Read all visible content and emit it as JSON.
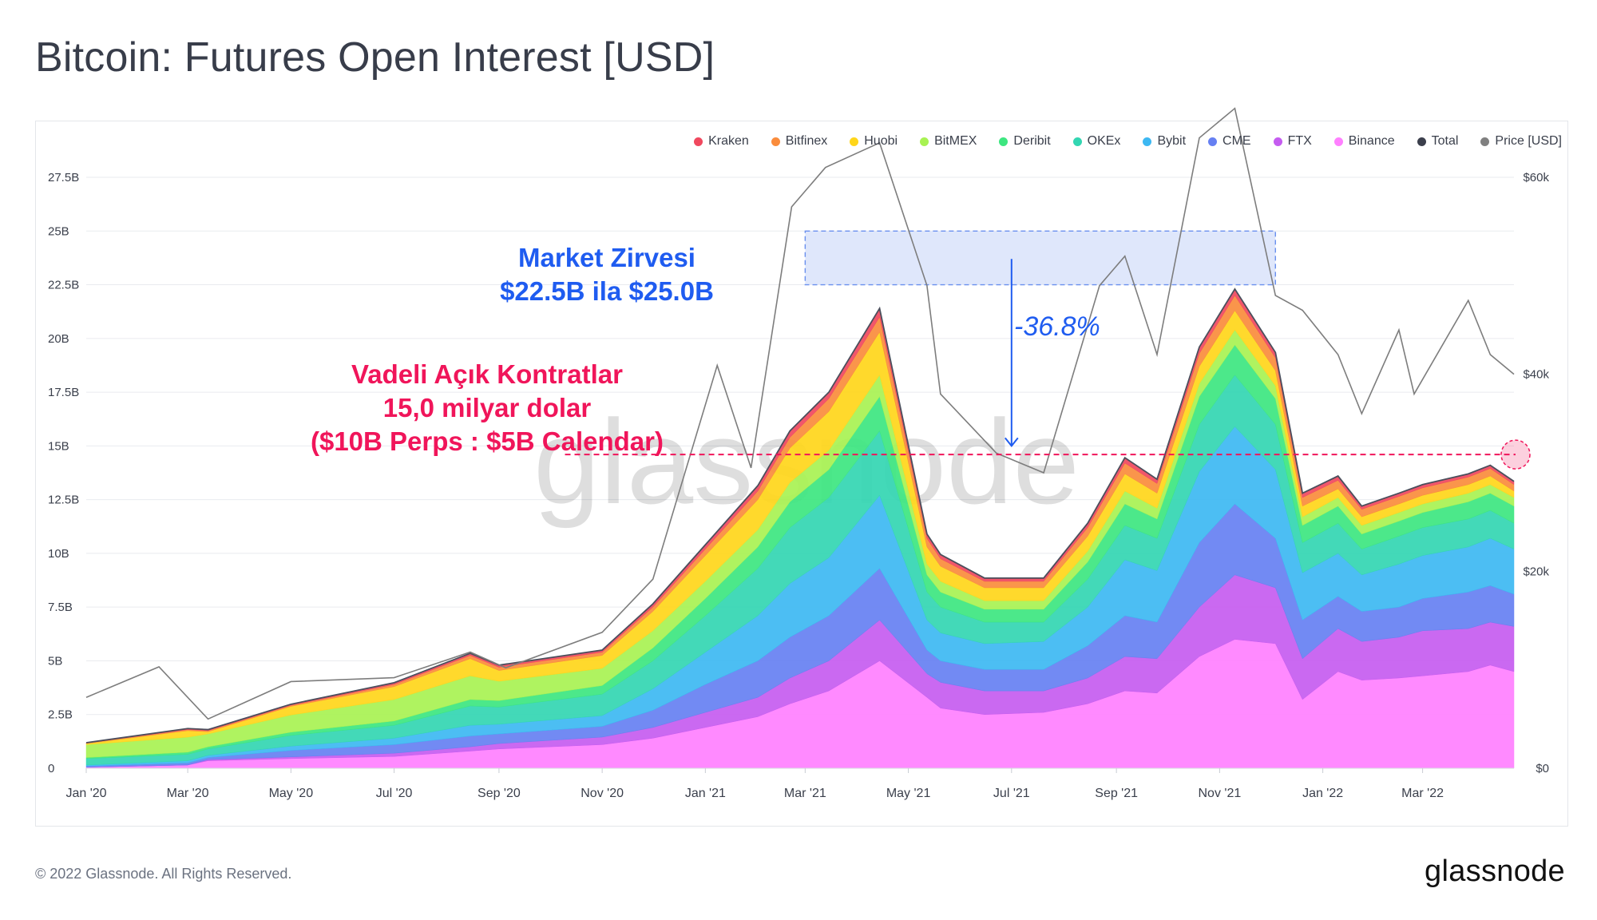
{
  "title": "Bitcoin: Futures Open Interest [USD]",
  "footer": {
    "copyright": "© 2022 Glassnode. All Rights Reserved.",
    "logo": "glassnode"
  },
  "watermark": "glassnode",
  "annotations": {
    "peak_line1": "Market Zirvesi",
    "peak_line2": "$22.5B ila $25.0B",
    "oi_line1": "Vadeli Açık Kontratlar",
    "oi_line2": "15,0 milyar dolar",
    "oi_line3": "($10B Perps : $5B Calendar)",
    "drawdown": "-36.8%"
  },
  "chart_data": {
    "type": "area",
    "stacked": true,
    "legend_position": "top-right",
    "grid": true,
    "y_left": {
      "ticks": [
        "0",
        "2.5B",
        "5B",
        "7.5B",
        "10B",
        "12.5B",
        "15B",
        "17.5B",
        "20B",
        "22.5B",
        "25B",
        "27.5B"
      ],
      "range": [
        0,
        27.5
      ]
    },
    "y_right": {
      "label": "Price [USD]",
      "ticks": [
        "$0",
        "$20k",
        "$40k",
        "$60k"
      ],
      "range": [
        0,
        60000
      ]
    },
    "x_ticks": [
      "Jan '20",
      "Mar '20",
      "May '20",
      "Jul '20",
      "Sep '20",
      "Nov '20",
      "Jan '21",
      "Mar '21",
      "May '21",
      "Jul '21",
      "Sep '21",
      "Nov '21",
      "Jan '22",
      "Mar '22"
    ],
    "x_range": [
      "2020-01-01",
      "2022-04-24"
    ],
    "x": [
      "2020-01-01",
      "2020-03-01",
      "2020-03-13",
      "2020-05-01",
      "2020-07-01",
      "2020-08-15",
      "2020-09-01",
      "2020-11-01",
      "2020-12-01",
      "2021-01-01",
      "2021-02-01",
      "2021-02-20",
      "2021-03-15",
      "2021-04-14",
      "2021-05-12",
      "2021-05-20",
      "2021-06-15",
      "2021-07-20",
      "2021-08-15",
      "2021-09-06",
      "2021-09-25",
      "2021-10-20",
      "2021-11-10",
      "2021-12-04",
      "2021-12-20",
      "2022-01-10",
      "2022-01-24",
      "2022-02-15",
      "2022-03-01",
      "2022-03-28",
      "2022-04-10",
      "2022-04-24"
    ],
    "series": [
      {
        "name": "Binance",
        "color": "#ff80ff",
        "values": [
          0.05,
          0.15,
          0.35,
          0.45,
          0.55,
          0.8,
          0.9,
          1.1,
          1.4,
          1.9,
          2.4,
          3.0,
          3.6,
          5.0,
          3.3,
          2.8,
          2.5,
          2.6,
          3.0,
          3.6,
          3.5,
          5.2,
          6.0,
          5.8,
          3.2,
          4.5,
          4.1,
          4.2,
          4.3,
          4.5,
          4.8,
          4.5
        ]
      },
      {
        "name": "FTX",
        "color": "#c55cf0",
        "values": [
          0.0,
          0.0,
          0.05,
          0.08,
          0.15,
          0.2,
          0.25,
          0.35,
          0.5,
          0.7,
          0.9,
          1.2,
          1.4,
          1.9,
          1.1,
          1.2,
          1.1,
          1.0,
          1.2,
          1.6,
          1.6,
          2.3,
          3.0,
          2.6,
          1.9,
          2.0,
          1.8,
          1.9,
          2.1,
          2.0,
          2.0,
          2.1
        ]
      },
      {
        "name": "CME",
        "color": "#6680f2",
        "values": [
          0.05,
          0.1,
          0.1,
          0.3,
          0.4,
          0.5,
          0.45,
          0.5,
          0.8,
          1.3,
          1.7,
          1.9,
          2.1,
          2.4,
          1.1,
          1.0,
          1.0,
          1.0,
          1.5,
          1.9,
          1.7,
          3.0,
          3.3,
          2.3,
          1.8,
          1.5,
          1.4,
          1.4,
          1.5,
          1.7,
          1.7,
          1.5
        ]
      },
      {
        "name": "Bybit",
        "color": "#3db8f2",
        "values": [
          0.05,
          0.1,
          0.1,
          0.2,
          0.3,
          0.5,
          0.45,
          0.5,
          1.0,
          1.5,
          2.1,
          2.5,
          2.7,
          3.4,
          1.4,
          1.3,
          1.2,
          1.3,
          1.8,
          2.6,
          2.4,
          3.3,
          3.6,
          3.2,
          2.2,
          2.0,
          1.7,
          2.0,
          2.0,
          2.1,
          2.2,
          2.1
        ]
      },
      {
        "name": "OKEx",
        "color": "#33d6b2",
        "values": [
          0.3,
          0.3,
          0.3,
          0.5,
          0.6,
          0.9,
          0.8,
          1.0,
          1.3,
          1.7,
          2.2,
          2.6,
          2.8,
          3.0,
          1.3,
          1.2,
          1.0,
          0.9,
          1.3,
          1.6,
          1.5,
          2.2,
          2.4,
          2.1,
          1.4,
          1.4,
          1.2,
          1.3,
          1.3,
          1.3,
          1.3,
          1.2
        ]
      },
      {
        "name": "Deribit",
        "color": "#3de680",
        "values": [
          0.05,
          0.1,
          0.1,
          0.15,
          0.2,
          0.3,
          0.3,
          0.4,
          0.6,
          0.8,
          1.0,
          1.2,
          1.3,
          1.6,
          0.8,
          0.7,
          0.6,
          0.6,
          0.8,
          1.0,
          0.9,
          1.3,
          1.4,
          1.2,
          0.8,
          0.8,
          0.7,
          0.7,
          0.7,
          0.8,
          0.8,
          0.8
        ]
      },
      {
        "name": "BitMEX",
        "color": "#a8f252",
        "values": [
          0.6,
          0.7,
          0.6,
          0.8,
          1.0,
          1.1,
          0.9,
          0.8,
          0.8,
          0.8,
          0.8,
          0.9,
          0.9,
          1.0,
          0.5,
          0.5,
          0.4,
          0.4,
          0.5,
          0.6,
          0.5,
          0.6,
          0.7,
          0.6,
          0.4,
          0.4,
          0.4,
          0.4,
          0.4,
          0.4,
          0.4,
          0.4
        ]
      },
      {
        "name": "Huobi",
        "color": "#ffd61a",
        "values": [
          0.05,
          0.3,
          0.1,
          0.4,
          0.6,
          0.8,
          0.5,
          0.6,
          0.9,
          1.2,
          1.4,
          1.6,
          1.8,
          2.0,
          0.8,
          0.7,
          0.6,
          0.6,
          0.7,
          0.8,
          0.7,
          0.8,
          0.9,
          0.7,
          0.5,
          0.4,
          0.4,
          0.4,
          0.4,
          0.4,
          0.4,
          0.3
        ]
      },
      {
        "name": "Bitfinex",
        "color": "#fa8c3c",
        "values": [
          0.02,
          0.05,
          0.05,
          0.05,
          0.1,
          0.15,
          0.15,
          0.15,
          0.2,
          0.3,
          0.4,
          0.5,
          0.6,
          0.7,
          0.4,
          0.35,
          0.3,
          0.3,
          0.4,
          0.5,
          0.45,
          0.6,
          0.7,
          0.6,
          0.4,
          0.4,
          0.35,
          0.35,
          0.35,
          0.35,
          0.35,
          0.3
        ]
      },
      {
        "name": "Kraken",
        "color": "#f0485e",
        "values": [
          0.02,
          0.05,
          0.05,
          0.05,
          0.08,
          0.1,
          0.1,
          0.1,
          0.15,
          0.2,
          0.25,
          0.3,
          0.3,
          0.4,
          0.2,
          0.2,
          0.15,
          0.15,
          0.2,
          0.25,
          0.2,
          0.3,
          0.3,
          0.25,
          0.2,
          0.2,
          0.15,
          0.15,
          0.15,
          0.15,
          0.15,
          0.15
        ]
      }
    ],
    "total_series": {
      "name": "Total",
      "color": "#4b4f5c"
    },
    "price_series": {
      "name": "Price [USD]",
      "color": "#7d7d7d",
      "x": [
        "2020-01-01",
        "2020-02-13",
        "2020-03-13",
        "2020-05-01",
        "2020-07-01",
        "2020-08-15",
        "2020-09-05",
        "2020-11-01",
        "2020-12-01",
        "2021-01-08",
        "2021-01-28",
        "2021-02-21",
        "2021-03-13",
        "2021-04-14",
        "2021-05-12",
        "2021-05-20",
        "2021-06-22",
        "2021-07-20",
        "2021-08-22",
        "2021-09-06",
        "2021-09-25",
        "2021-10-20",
        "2021-11-10",
        "2021-12-04",
        "2021-12-20",
        "2022-01-10",
        "2022-01-24",
        "2022-02-15",
        "2022-02-24",
        "2022-03-28",
        "2022-04-10",
        "2022-04-24"
      ],
      "values": [
        7200,
        10300,
        5000,
        8800,
        9200,
        11800,
        10200,
        13800,
        19200,
        40900,
        30500,
        57000,
        61000,
        63500,
        49000,
        38000,
        32000,
        30000,
        49000,
        52000,
        42000,
        64000,
        67000,
        48000,
        46500,
        42000,
        36000,
        44500,
        38000,
        47500,
        42000,
        40000
      ]
    },
    "legend": [
      "Kraken",
      "Bitfinex",
      "Huobi",
      "BitMEX",
      "Deribit",
      "OKEx",
      "Bybit",
      "CME",
      "FTX",
      "Binance",
      "Total",
      "Price [USD]"
    ],
    "legend_colors": [
      "#f0485e",
      "#fa8c3c",
      "#ffd61a",
      "#a8f252",
      "#3de680",
      "#33d6b2",
      "#3db8f2",
      "#6680f2",
      "#c55cf0",
      "#ff80ff",
      "#3b3f4c",
      "#808080"
    ],
    "highlight_band": {
      "y_range": [
        22.5,
        25.0
      ],
      "x_range": [
        "2021-03-01",
        "2021-12-04"
      ],
      "color": "#dfe7fb"
    },
    "reference_line": {
      "y": 14.6,
      "x_start": "2020-10-10",
      "color": "#f0155a"
    },
    "drawdown_arrow": {
      "x": "2021-07-01",
      "from_y": 23.7,
      "to_y": 15.0
    }
  }
}
